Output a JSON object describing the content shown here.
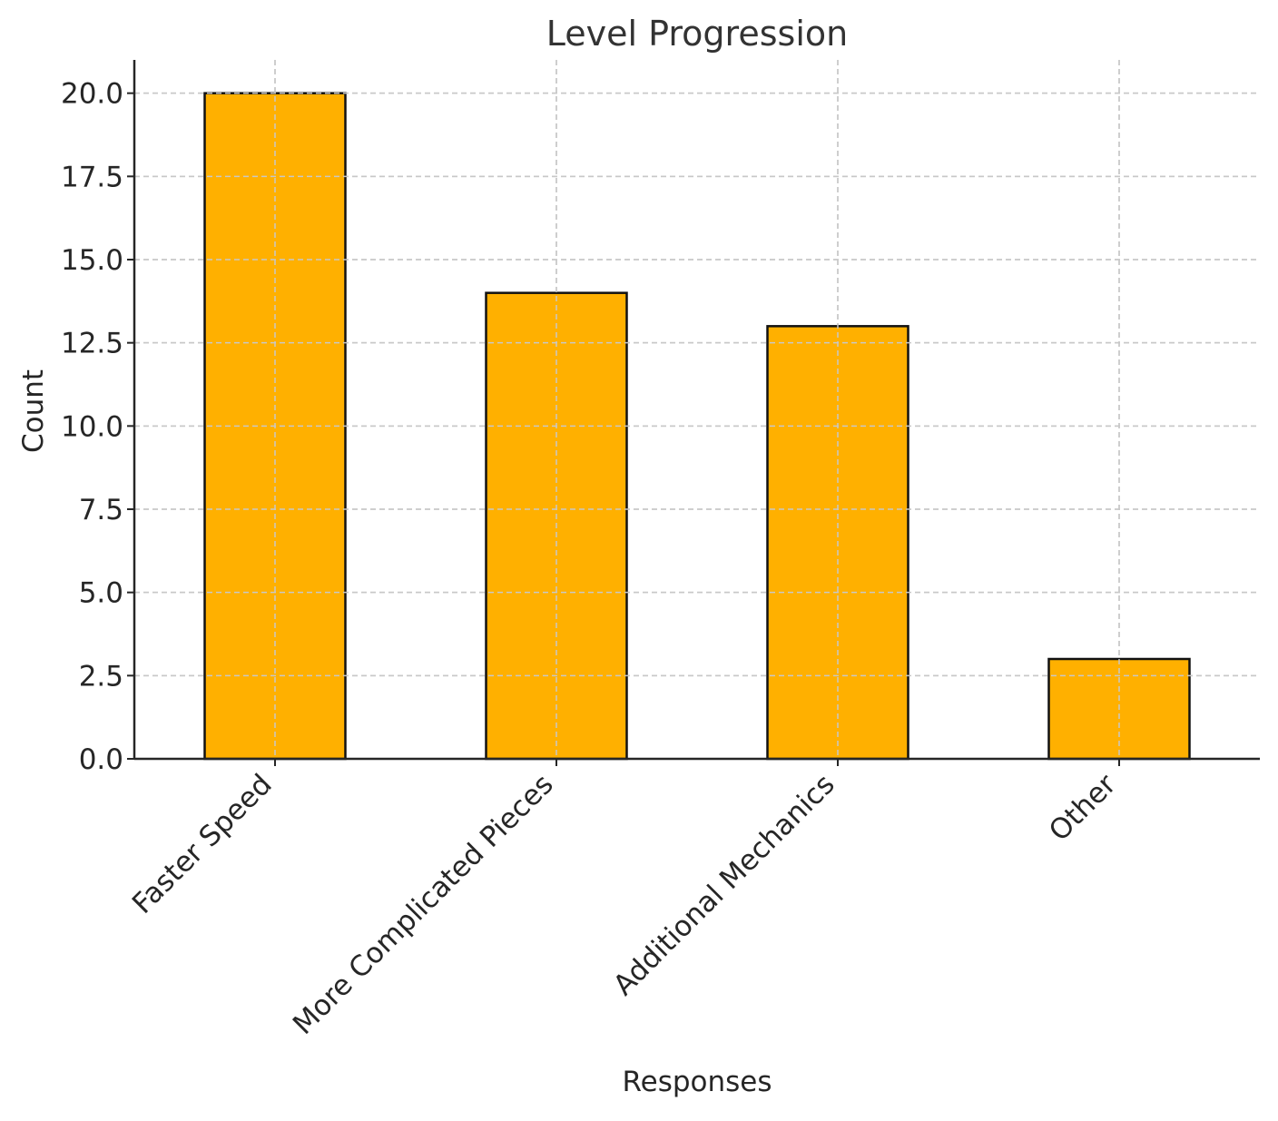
{
  "chart_data": {
    "type": "bar",
    "title": "Level Progression",
    "xlabel": "Responses",
    "ylabel": "Count",
    "categories": [
      "Faster Speed",
      "More Complicated Pieces",
      "Additional Mechanics",
      "Other"
    ],
    "values": [
      20,
      14,
      13,
      3
    ],
    "ylim": [
      0,
      21
    ],
    "yticks": [
      "0.0",
      "2.5",
      "5.0",
      "7.5",
      "10.0",
      "12.5",
      "15.0",
      "17.5",
      "20.0"
    ],
    "bar_color": "#FFB000",
    "edge_color": "#111111",
    "grid": true,
    "legend": "none"
  }
}
